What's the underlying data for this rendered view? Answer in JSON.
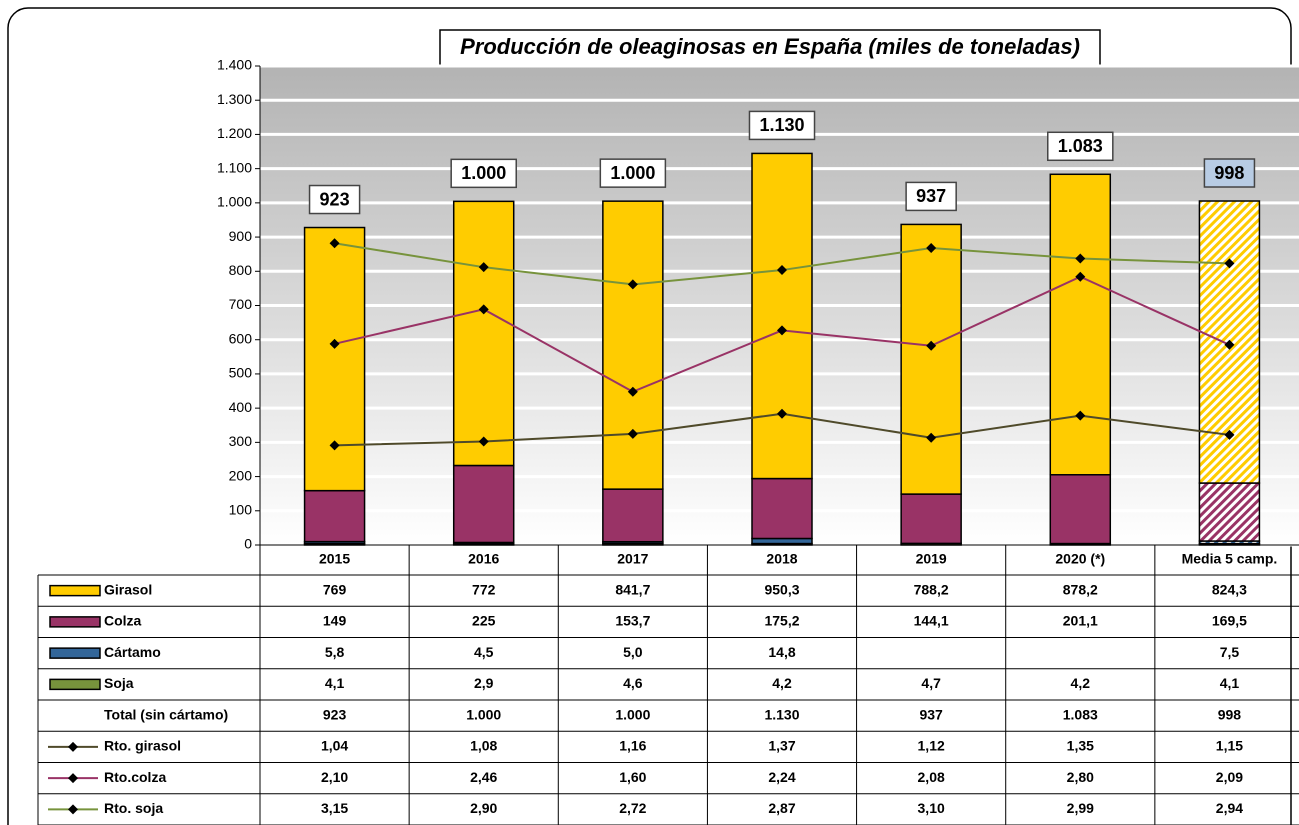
{
  "chart_data": {
    "type": "bar",
    "title": "Producción de oleaginosas en España (miles de toneladas)",
    "categories": [
      "2015",
      "2016",
      "2017",
      "2018",
      "2019",
      "2020 (*)",
      "Media 5 camp."
    ],
    "ylim": [
      0,
      1400
    ],
    "yticks": [
      0,
      100,
      200,
      300,
      400,
      500,
      600,
      700,
      800,
      900,
      {
        "value": 1000,
        "label": "1.000"
      },
      {
        "value": 1100,
        "label": "1.100"
      },
      {
        "value": 1200,
        "label": "1.200"
      },
      {
        "value": 1300,
        "label": "1.300"
      },
      {
        "value": 1400,
        "label": "1.400"
      }
    ],
    "y2lim": [
      0,
      5
    ],
    "grid": true,
    "series": [
      {
        "name": "Girasol",
        "color": "#ffcc00",
        "type": "bar",
        "values": [
          769,
          772,
          841.7,
          950.3,
          788.2,
          878.2,
          824.3
        ],
        "value_labels": [
          "769",
          "772",
          "841,7",
          "950,3",
          "788,2",
          "878,2",
          "824,3"
        ]
      },
      {
        "name": "Colza",
        "color": "#993366",
        "type": "bar",
        "values": [
          149,
          225,
          153.7,
          175.2,
          144.1,
          201.1,
          169.5
        ],
        "value_labels": [
          "149",
          "225",
          "153,7",
          "175,2",
          "144,1",
          "201,1",
          "169,5"
        ]
      },
      {
        "name": "Cártamo",
        "color": "#336699",
        "type": "bar",
        "values": [
          5.8,
          4.5,
          5.0,
          14.8,
          null,
          null,
          7.5
        ],
        "value_labels": [
          "5,8",
          "4,5",
          "5,0",
          "14,8",
          null,
          null,
          "7,5"
        ]
      },
      {
        "name": "Soja",
        "color": "#77933c",
        "type": "bar",
        "values": [
          4.1,
          2.9,
          4.6,
          4.2,
          4.7,
          4.2,
          4.1
        ],
        "value_labels": [
          "4,1",
          "2,9",
          "4,6",
          "4,2",
          "4,7",
          "4,2",
          "4,1"
        ]
      },
      {
        "name": "Rto. girasol",
        "color": "#4f4a2a",
        "type": "line",
        "axis": "y2",
        "values": [
          1.04,
          1.08,
          1.16,
          1.37,
          1.12,
          1.35,
          1.15
        ],
        "value_labels": [
          "1,04",
          "1,08",
          "1,16",
          "1,37",
          "1,12",
          "1,35",
          "1,15"
        ]
      },
      {
        "name": "Rto.colza",
        "color": "#993366",
        "type": "line",
        "axis": "y2",
        "values": [
          2.1,
          2.46,
          1.6,
          2.24,
          2.08,
          2.8,
          2.09
        ],
        "value_labels": [
          "2,10",
          "2,46",
          "1,60",
          "2,24",
          "2,08",
          "2,80",
          "2,09"
        ]
      },
      {
        "name": "Rto. soja",
        "color": "#77933c",
        "type": "line",
        "axis": "y2",
        "values": [
          3.15,
          2.9,
          2.72,
          2.87,
          3.1,
          2.99,
          2.94
        ],
        "value_labels": [
          "3,15",
          "2,90",
          "2,72",
          "2,87",
          "3,10",
          "2,99",
          "2,94"
        ]
      }
    ],
    "totals": {
      "name": "Total (sin cártamo)",
      "values": [
        923,
        1000,
        1000,
        1130,
        937,
        1083,
        998
      ],
      "value_labels": [
        "923",
        "1.000",
        "1.000",
        "1.130",
        "937",
        "1.083",
        "998"
      ]
    }
  }
}
